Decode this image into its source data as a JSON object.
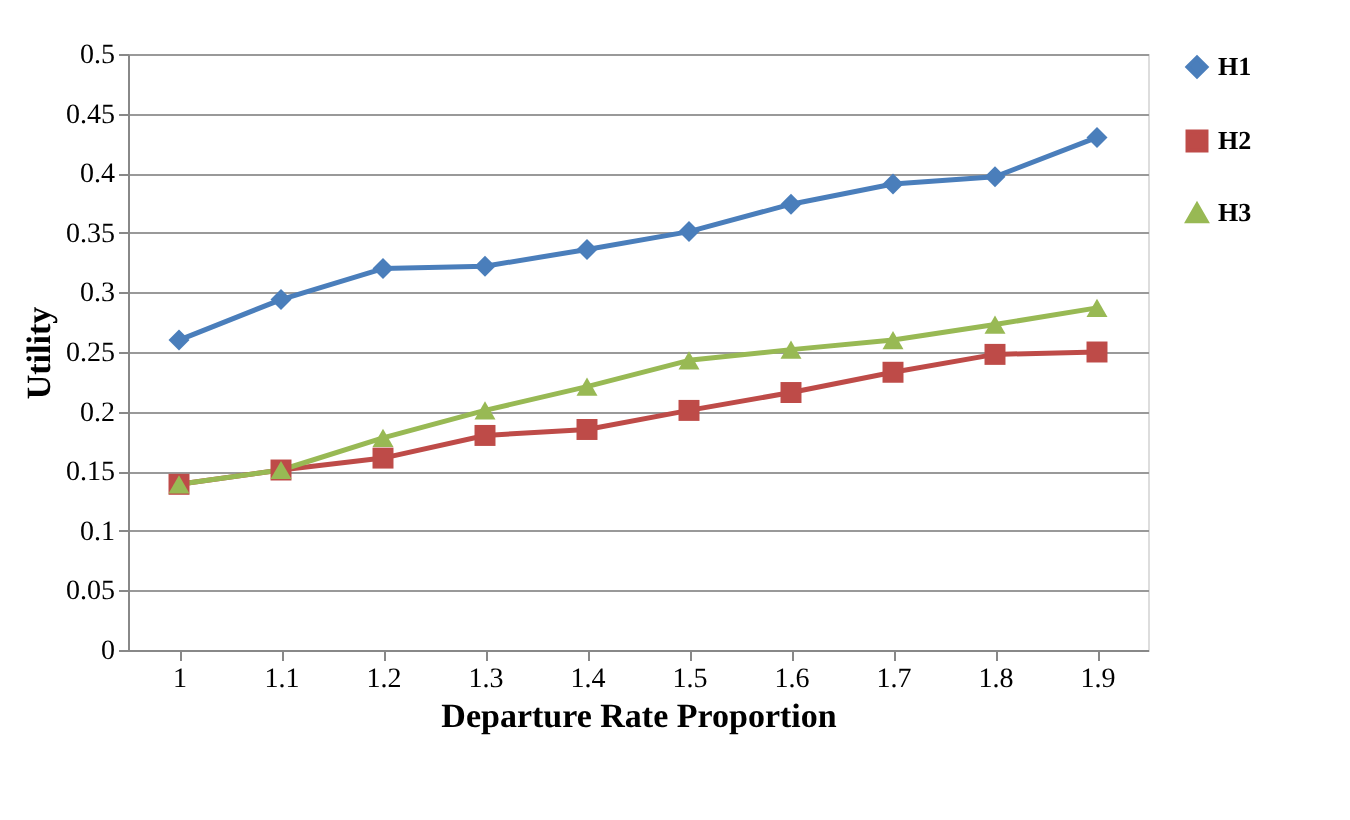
{
  "chart_data": {
    "type": "line",
    "xlabel": "Departure Rate Proportion",
    "ylabel": "Utility",
    "categories": [
      "1",
      "1.1",
      "1.2",
      "1.3",
      "1.4",
      "1.5",
      "1.6",
      "1.7",
      "1.8",
      "1.9"
    ],
    "ylim": [
      0,
      0.5
    ],
    "yticks": [
      0,
      0.05,
      0.1,
      0.15,
      0.2,
      0.25,
      0.3,
      0.35,
      0.4,
      0.45,
      0.5
    ],
    "grid": "y",
    "legend": "right",
    "line_style": "solid",
    "series": [
      {
        "name": "H1",
        "color": "#4a7ebb",
        "marker": "diamond",
        "values": [
          0.26,
          0.294,
          0.32,
          0.322,
          0.336,
          0.351,
          0.374,
          0.391,
          0.397,
          0.43
        ]
      },
      {
        "name": "H2",
        "color": "#be4b48",
        "marker": "square",
        "values": [
          0.139,
          0.151,
          0.161,
          0.18,
          0.185,
          0.201,
          0.216,
          0.233,
          0.248,
          0.25
        ]
      },
      {
        "name": "H3",
        "color": "#98b954",
        "marker": "triangle",
        "values": [
          0.139,
          0.151,
          0.178,
          0.201,
          0.221,
          0.243,
          0.252,
          0.26,
          0.273,
          0.287
        ]
      }
    ]
  }
}
